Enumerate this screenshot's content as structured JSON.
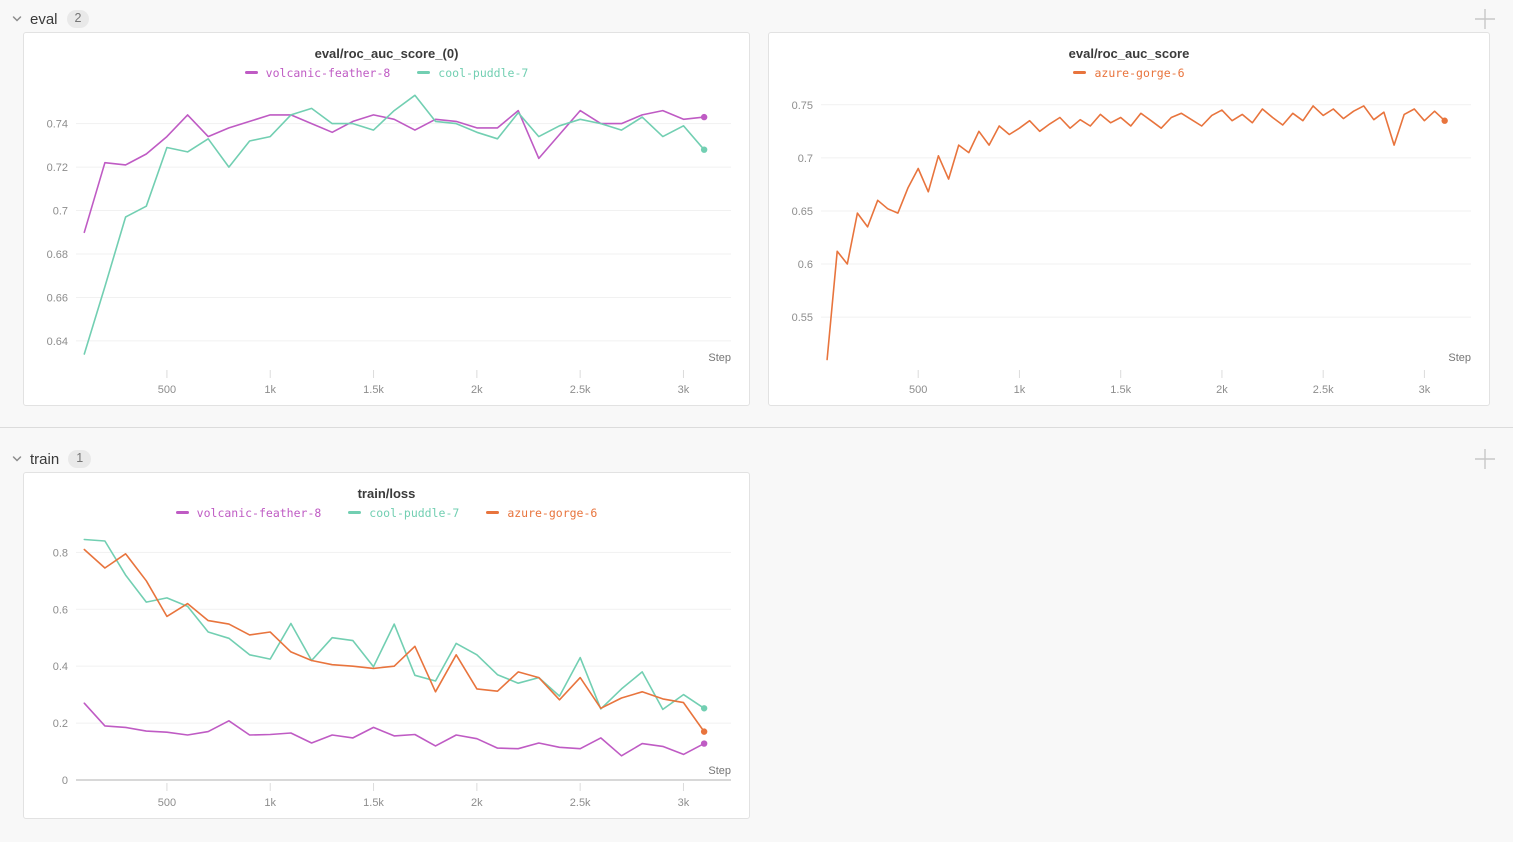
{
  "page": {
    "background": "#f8f8f8"
  },
  "sections": [
    {
      "id": "eval",
      "label": "eval",
      "count": "2"
    },
    {
      "id": "train",
      "label": "train",
      "count": "1"
    }
  ],
  "runs": [
    {
      "name": "volcanic-feather-8",
      "color": "#bf5bc4"
    },
    {
      "name": "cool-puddle-7",
      "color": "#72cfb2"
    },
    {
      "name": "azure-gorge-6",
      "color": "#e8743d"
    }
  ],
  "chart_data": [
    {
      "type": "line",
      "panel": "eval",
      "title": "eval/roc_auc_score_(0)",
      "xlabel": "Step",
      "xlim": [
        60,
        3230
      ],
      "ylim": [
        0.628,
        0.755
      ],
      "xticks": [
        500,
        1000,
        1500,
        2000,
        2500,
        3000
      ],
      "xtick_labels": [
        "500",
        "1k",
        "1.5k",
        "2k",
        "2.5k",
        "3k"
      ],
      "yticks": [
        0.64,
        0.66,
        0.68,
        0.7,
        0.72,
        0.74
      ],
      "ytick_labels": [
        "0.64",
        "0.66",
        "0.68",
        "0.7",
        "0.72",
        "0.74"
      ],
      "grid": "horizontal",
      "legend_position": "top",
      "series": [
        {
          "name": "volcanic-feather-8",
          "color": "#bf5bc4",
          "end_dot": true,
          "steps": [
            100,
            200,
            300,
            400,
            500,
            600,
            700,
            800,
            900,
            1000,
            1100,
            1200,
            1300,
            1400,
            1500,
            1600,
            1700,
            1800,
            1900,
            2000,
            2100,
            2200,
            2300,
            2400,
            2500,
            2600,
            2700,
            2800,
            2900,
            3000,
            3100
          ],
          "values": [
            0.69,
            0.722,
            0.721,
            0.726,
            0.734,
            0.744,
            0.734,
            0.738,
            0.741,
            0.744,
            0.744,
            0.74,
            0.736,
            0.741,
            0.744,
            0.742,
            0.737,
            0.742,
            0.741,
            0.738,
            0.738,
            0.746,
            0.724,
            0.735,
            0.746,
            0.74,
            0.74,
            0.744,
            0.746,
            0.742,
            0.743
          ]
        },
        {
          "name": "cool-puddle-7",
          "color": "#72cfb2",
          "end_dot": true,
          "steps": [
            100,
            200,
            300,
            400,
            500,
            600,
            700,
            800,
            900,
            1000,
            1100,
            1200,
            1300,
            1400,
            1500,
            1600,
            1700,
            1800,
            1900,
            2000,
            2100,
            2200,
            2300,
            2400,
            2500,
            2600,
            2700,
            2800,
            2900,
            3000,
            3100
          ],
          "values": [
            0.634,
            0.665,
            0.697,
            0.702,
            0.729,
            0.727,
            0.733,
            0.72,
            0.732,
            0.734,
            0.744,
            0.747,
            0.74,
            0.74,
            0.737,
            0.746,
            0.753,
            0.741,
            0.74,
            0.736,
            0.733,
            0.745,
            0.734,
            0.739,
            0.742,
            0.74,
            0.737,
            0.743,
            0.734,
            0.739,
            0.728
          ]
        }
      ]
    },
    {
      "type": "line",
      "panel": "eval",
      "title": "eval/roc_auc_score",
      "xlabel": "Step",
      "xlim": [
        20,
        3230
      ],
      "ylim": [
        0.503,
        0.763
      ],
      "xticks": [
        500,
        1000,
        1500,
        2000,
        2500,
        3000
      ],
      "xtick_labels": [
        "500",
        "1k",
        "1.5k",
        "2k",
        "2.5k",
        "3k"
      ],
      "yticks": [
        0.55,
        0.6,
        0.65,
        0.7,
        0.75
      ],
      "ytick_labels": [
        "0.55",
        "0.6",
        "0.65",
        "0.7",
        "0.75"
      ],
      "grid": "horizontal",
      "legend_position": "top",
      "series": [
        {
          "name": "azure-gorge-6",
          "color": "#e8743d",
          "end_dot": true,
          "steps": [
            50,
            100,
            150,
            200,
            250,
            300,
            350,
            400,
            450,
            500,
            550,
            600,
            650,
            700,
            750,
            800,
            850,
            900,
            950,
            1000,
            1050,
            1100,
            1150,
            1200,
            1250,
            1300,
            1350,
            1400,
            1450,
            1500,
            1550,
            1600,
            1650,
            1700,
            1750,
            1800,
            1850,
            1900,
            1950,
            2000,
            2050,
            2100,
            2150,
            2200,
            2250,
            2300,
            2350,
            2400,
            2450,
            2500,
            2550,
            2600,
            2650,
            2700,
            2750,
            2800,
            2850,
            2900,
            2950,
            3000,
            3050,
            3100
          ],
          "values": [
            0.51,
            0.612,
            0.6,
            0.648,
            0.635,
            0.66,
            0.652,
            0.648,
            0.672,
            0.69,
            0.668,
            0.702,
            0.68,
            0.712,
            0.705,
            0.725,
            0.712,
            0.73,
            0.722,
            0.728,
            0.735,
            0.725,
            0.732,
            0.738,
            0.728,
            0.736,
            0.73,
            0.741,
            0.733,
            0.738,
            0.73,
            0.742,
            0.735,
            0.728,
            0.738,
            0.742,
            0.736,
            0.73,
            0.74,
            0.745,
            0.735,
            0.741,
            0.733,
            0.746,
            0.738,
            0.731,
            0.742,
            0.735,
            0.749,
            0.74,
            0.746,
            0.737,
            0.744,
            0.749,
            0.736,
            0.743,
            0.712,
            0.741,
            0.746,
            0.735,
            0.744,
            0.735
          ]
        }
      ]
    },
    {
      "type": "line",
      "panel": "train",
      "title": "train/loss",
      "xlabel": "Step",
      "xlim": [
        60,
        3230
      ],
      "ylim": [
        0,
        0.875
      ],
      "xticks": [
        500,
        1000,
        1500,
        2000,
        2500,
        3000
      ],
      "xtick_labels": [
        "500",
        "1k",
        "1.5k",
        "2k",
        "2.5k",
        "3k"
      ],
      "yticks": [
        0,
        0.2,
        0.4,
        0.6,
        0.8
      ],
      "ytick_labels": [
        "0",
        "0.2",
        "0.4",
        "0.6",
        "0.8"
      ],
      "grid": "horizontal",
      "legend_position": "top",
      "series": [
        {
          "name": "volcanic-feather-8",
          "color": "#bf5bc4",
          "end_dot": true,
          "steps": [
            100,
            200,
            300,
            400,
            500,
            600,
            700,
            800,
            900,
            1000,
            1100,
            1200,
            1300,
            1400,
            1500,
            1600,
            1700,
            1800,
            1900,
            2000,
            2100,
            2200,
            2300,
            2400,
            2500,
            2600,
            2700,
            2800,
            2900,
            3000,
            3100
          ],
          "values": [
            0.27,
            0.19,
            0.185,
            0.172,
            0.168,
            0.158,
            0.17,
            0.208,
            0.158,
            0.16,
            0.165,
            0.13,
            0.158,
            0.148,
            0.185,
            0.155,
            0.16,
            0.12,
            0.158,
            0.145,
            0.112,
            0.11,
            0.13,
            0.115,
            0.11,
            0.148,
            0.085,
            0.128,
            0.118,
            0.09,
            0.128
          ]
        },
        {
          "name": "cool-puddle-7",
          "color": "#72cfb2",
          "end_dot": true,
          "steps": [
            100,
            200,
            300,
            400,
            500,
            600,
            700,
            800,
            900,
            1000,
            1100,
            1200,
            1300,
            1400,
            1500,
            1600,
            1700,
            1800,
            1900,
            2000,
            2100,
            2200,
            2300,
            2400,
            2500,
            2600,
            2700,
            2800,
            2900,
            3000,
            3100
          ],
          "values": [
            0.845,
            0.84,
            0.72,
            0.625,
            0.64,
            0.61,
            0.52,
            0.498,
            0.44,
            0.425,
            0.55,
            0.42,
            0.5,
            0.49,
            0.398,
            0.548,
            0.368,
            0.348,
            0.48,
            0.44,
            0.37,
            0.34,
            0.36,
            0.295,
            0.43,
            0.25,
            0.32,
            0.38,
            0.248,
            0.3,
            0.252
          ]
        },
        {
          "name": "azure-gorge-6",
          "color": "#e8743d",
          "end_dot": true,
          "steps": [
            100,
            200,
            300,
            400,
            500,
            600,
            700,
            800,
            900,
            1000,
            1100,
            1200,
            1300,
            1400,
            1500,
            1600,
            1700,
            1800,
            1900,
            2000,
            2100,
            2200,
            2300,
            2400,
            2500,
            2600,
            2700,
            2800,
            2900,
            3000,
            3100
          ],
          "values": [
            0.81,
            0.745,
            0.795,
            0.7,
            0.575,
            0.62,
            0.56,
            0.548,
            0.51,
            0.52,
            0.45,
            0.42,
            0.405,
            0.4,
            0.392,
            0.4,
            0.47,
            0.31,
            0.44,
            0.32,
            0.312,
            0.38,
            0.36,
            0.282,
            0.36,
            0.252,
            0.288,
            0.31,
            0.285,
            0.272,
            0.17
          ]
        }
      ]
    }
  ]
}
